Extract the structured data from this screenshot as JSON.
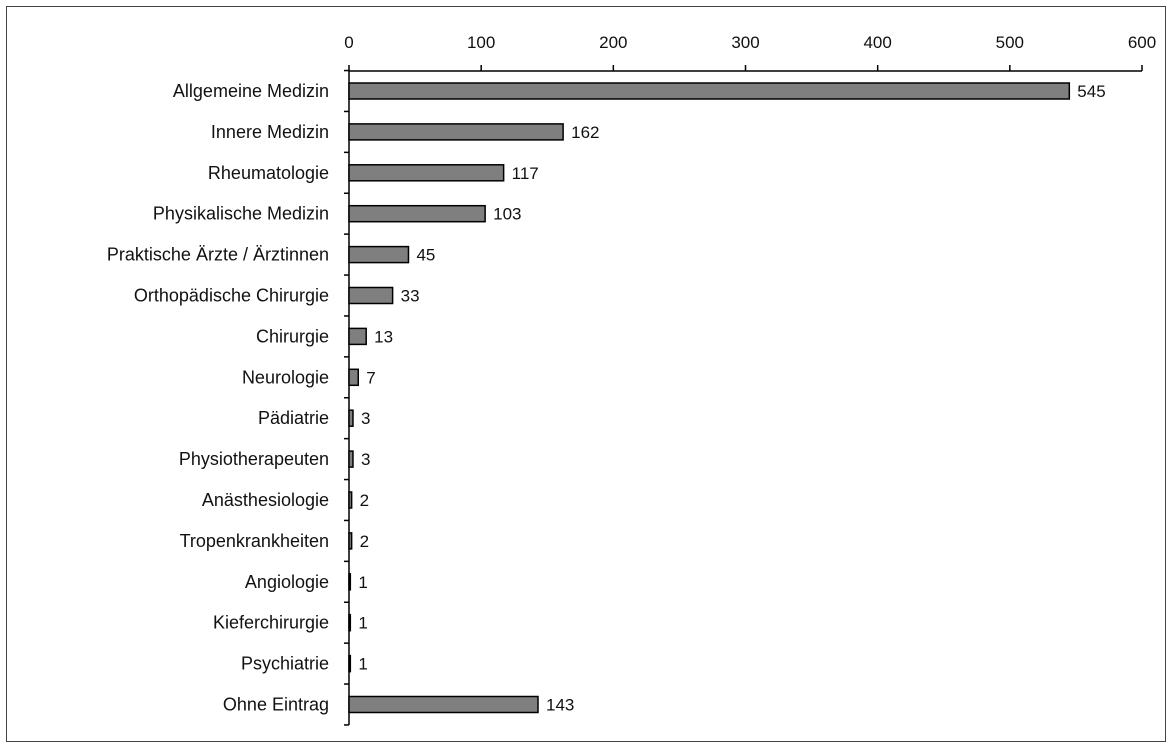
{
  "chart_data": {
    "type": "bar",
    "orientation": "horizontal",
    "categories": [
      "Allgemeine Medizin",
      "Innere Medizin",
      "Rheumatologie",
      "Physikalische Medizin",
      "Praktische Ärzte / Ärztinnen",
      "Orthopädische Chirurgie",
      "Chirurgie",
      "Neurologie",
      "Pädiatrie",
      "Physiotherapeuten",
      "Anästhesiologie",
      "Tropenkrankheiten",
      "Angiologie",
      "Kieferchirurgie",
      "Psychiatrie",
      "Ohne Eintrag"
    ],
    "values": [
      545,
      162,
      117,
      103,
      45,
      33,
      13,
      7,
      3,
      3,
      2,
      2,
      1,
      1,
      1,
      143
    ],
    "xlim": [
      0,
      600
    ],
    "xticks": [
      0,
      100,
      200,
      300,
      400,
      500,
      600
    ],
    "x_axis_position": "top",
    "grid": false,
    "legend": "none",
    "bar_color": "#7f7f7f",
    "bar_edge_color": "#000000"
  }
}
